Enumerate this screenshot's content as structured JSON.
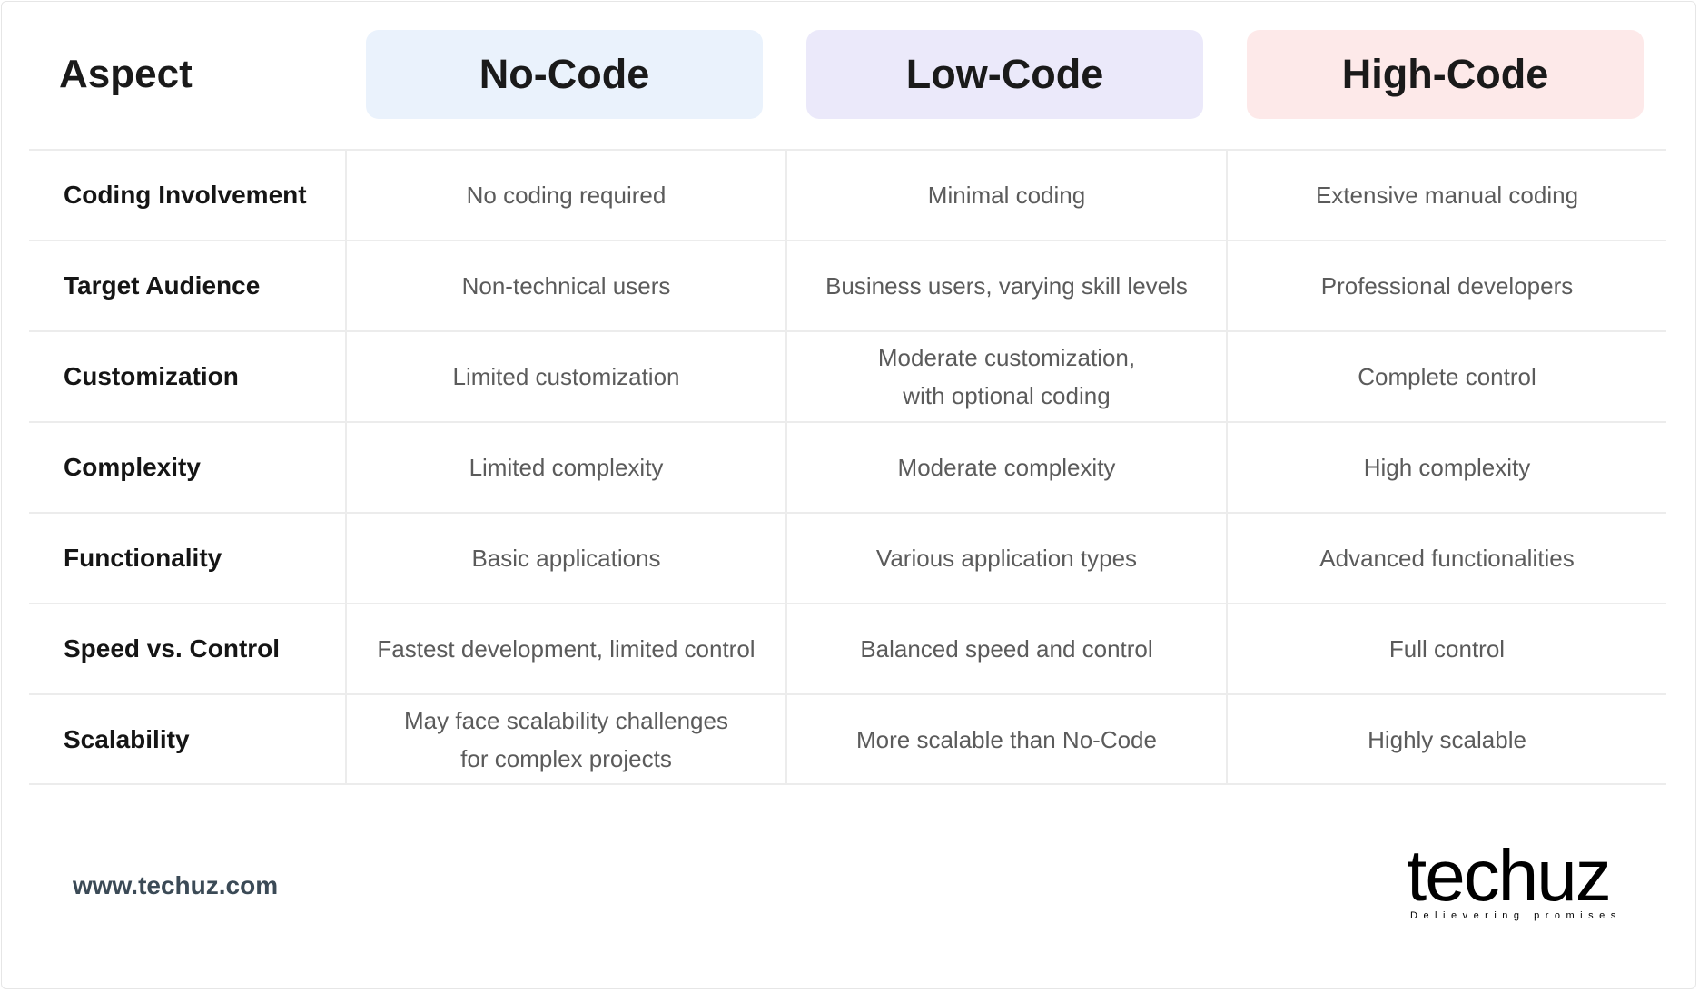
{
  "header": {
    "aspect_label": "Aspect",
    "columns": [
      {
        "label": "No-Code",
        "color": "#eaf2fc"
      },
      {
        "label": "Low-Code",
        "color": "#ebe9fa"
      },
      {
        "label": "High-Code",
        "color": "#fde9e9"
      }
    ]
  },
  "rows": [
    {
      "aspect": "Coding Involvement",
      "values": [
        "No coding required",
        "Minimal coding",
        "Extensive manual coding"
      ]
    },
    {
      "aspect": "Target Audience",
      "values": [
        "Non-technical users",
        "Business users, varying skill levels",
        "Professional developers"
      ]
    },
    {
      "aspect": "Customization",
      "values": [
        "Limited customization",
        "Moderate customization,\nwith optional coding",
        "Complete control"
      ]
    },
    {
      "aspect": "Complexity",
      "values": [
        "Limited complexity",
        "Moderate complexity",
        "High complexity"
      ]
    },
    {
      "aspect": "Functionality",
      "values": [
        "Basic applications",
        "Various application types",
        "Advanced functionalities"
      ]
    },
    {
      "aspect": "Speed vs. Control",
      "values": [
        "Fastest development, limited control",
        "Balanced speed and control",
        "Full control"
      ]
    },
    {
      "aspect": "Scalability",
      "values": [
        "May face scalability challenges\nfor complex projects",
        "More scalable than No-Code",
        "Highly scalable"
      ]
    }
  ],
  "footer": {
    "website": "www.techuz.com",
    "logo_text": "techuz",
    "logo_tagline": "Delievering promises"
  }
}
